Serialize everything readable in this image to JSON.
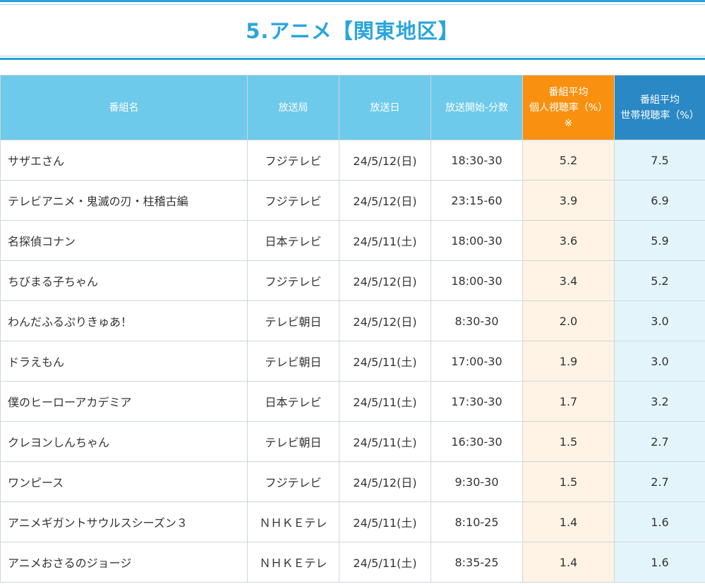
{
  "page": {
    "title": "5.アニメ【関東地区】"
  },
  "colors": {
    "header": "#6ecaeb",
    "personal_header": "#f9900f",
    "household_header": "#2a88c4",
    "title": "#2aa5dc"
  },
  "table": {
    "headers": {
      "name": "番組名",
      "station": "放送局",
      "date": "放送日",
      "start": "放送開始-分数",
      "personal_line1": "番組平均",
      "personal_line2": "個人視聴率（%）",
      "personal_line3": "※",
      "household_line1": "番組平均",
      "household_line2": "世帯視聴率（%）"
    },
    "rows": [
      {
        "name": "サザエさん",
        "station": "フジテレビ",
        "date": "24/5/12(日)",
        "start": "18:30-30",
        "personal": "5.2",
        "household": "7.5"
      },
      {
        "name": "テレビアニメ・鬼滅の刃・柱稽古編",
        "station": "フジテレビ",
        "date": "24/5/12(日)",
        "start": "23:15-60",
        "personal": "3.9",
        "household": "6.9"
      },
      {
        "name": "名探偵コナン",
        "station": "日本テレビ",
        "date": "24/5/11(土)",
        "start": "18:00-30",
        "personal": "3.6",
        "household": "5.9"
      },
      {
        "name": "ちびまる子ちゃん",
        "station": "フジテレビ",
        "date": "24/5/12(日)",
        "start": "18:00-30",
        "personal": "3.4",
        "household": "5.2"
      },
      {
        "name": "わんだふるぷりきゅあ！",
        "station": "テレビ朝日",
        "date": "24/5/12(日)",
        "start": "8:30-30",
        "personal": "2.0",
        "household": "3.0"
      },
      {
        "name": "ドラえもん",
        "station": "テレビ朝日",
        "date": "24/5/11(土)",
        "start": "17:00-30",
        "personal": "1.9",
        "household": "3.0"
      },
      {
        "name": "僕のヒーローアカデミア",
        "station": "日本テレビ",
        "date": "24/5/11(土)",
        "start": "17:30-30",
        "personal": "1.7",
        "household": "3.2"
      },
      {
        "name": "クレヨンしんちゃん",
        "station": "テレビ朝日",
        "date": "24/5/11(土)",
        "start": "16:30-30",
        "personal": "1.5",
        "household": "2.7"
      },
      {
        "name": "ワンピース",
        "station": "フジテレビ",
        "date": "24/5/12(日)",
        "start": "9:30-30",
        "personal": "1.5",
        "household": "2.7"
      },
      {
        "name": "アニメギガントサウルスシーズン３",
        "station": "ＮＨＫＥテレ",
        "date": "24/5/11(土)",
        "start": "8:10-25",
        "personal": "1.4",
        "household": "1.6"
      },
      {
        "name": "アニメおさるのジョージ",
        "station": "ＮＨＫＥテレ",
        "date": "24/5/11(土)",
        "start": "8:35-25",
        "personal": "1.4",
        "household": "1.6"
      }
    ]
  }
}
